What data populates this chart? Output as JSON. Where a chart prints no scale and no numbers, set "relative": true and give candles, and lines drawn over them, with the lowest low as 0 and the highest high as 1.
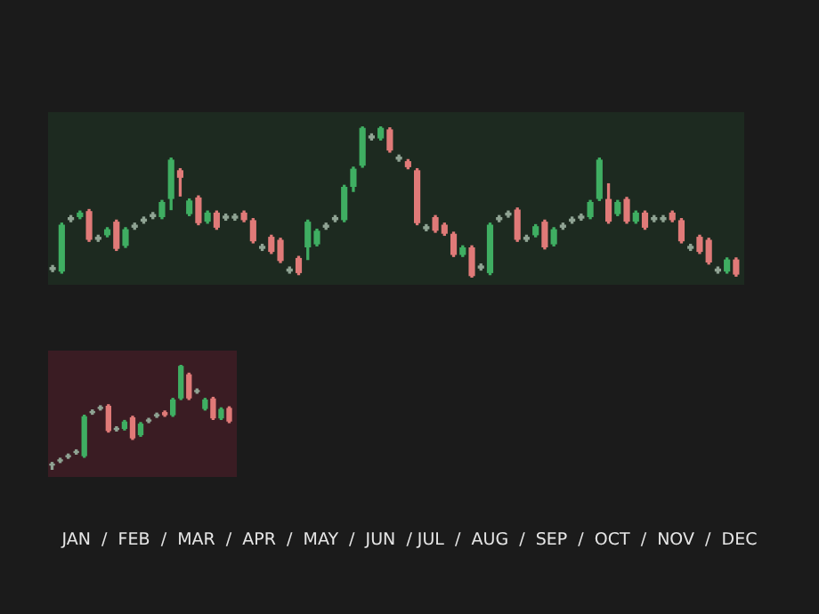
{
  "chart_data": [
    {
      "type": "candlestick",
      "relative": true,
      "tick_labels": false,
      "categories": [
        null,
        null,
        null,
        null,
        null,
        null,
        null,
        null,
        null,
        null,
        null,
        null,
        null,
        null,
        null,
        null,
        null,
        null,
        null,
        null,
        null,
        null,
        null,
        null,
        null,
        null,
        null,
        null,
        null,
        null,
        null,
        null,
        null,
        null,
        null,
        null,
        null,
        null,
        null,
        null,
        null,
        null,
        null,
        null,
        null,
        null,
        null,
        null,
        null,
        null,
        null,
        null,
        null,
        null,
        null,
        null,
        null,
        null,
        null,
        null,
        null,
        null,
        null,
        null,
        null,
        null,
        null,
        null,
        null,
        null,
        null,
        null,
        null,
        null,
        null,
        null
      ],
      "ohlc": [
        [
          0.05,
          0.08,
          0.04,
          0.07
        ],
        [
          0.04,
          0.36,
          0.03,
          0.35
        ],
        [
          0.38,
          0.41,
          0.37,
          0.4
        ],
        [
          0.4,
          0.44,
          0.39,
          0.43
        ],
        [
          0.44,
          0.45,
          0.24,
          0.25
        ],
        [
          0.25,
          0.28,
          0.24,
          0.27
        ],
        [
          0.28,
          0.33,
          0.27,
          0.32
        ],
        [
          0.37,
          0.38,
          0.18,
          0.19
        ],
        [
          0.21,
          0.33,
          0.2,
          0.32
        ],
        [
          0.33,
          0.36,
          0.32,
          0.35
        ],
        [
          0.37,
          0.4,
          0.36,
          0.39
        ],
        [
          0.4,
          0.43,
          0.39,
          0.42
        ],
        [
          0.4,
          0.51,
          0.39,
          0.5
        ],
        [
          0.52,
          0.79,
          0.45,
          0.78
        ],
        [
          0.71,
          0.72,
          0.54,
          0.66
        ],
        [
          0.42,
          0.52,
          0.41,
          0.51
        ],
        [
          0.53,
          0.54,
          0.35,
          0.36
        ],
        [
          0.37,
          0.44,
          0.36,
          0.43
        ],
        [
          0.43,
          0.44,
          0.32,
          0.33
        ],
        [
          0.39,
          0.42,
          0.38,
          0.41
        ],
        [
          0.39,
          0.42,
          0.38,
          0.41
        ],
        [
          0.43,
          0.44,
          0.37,
          0.38
        ],
        [
          0.38,
          0.39,
          0.23,
          0.24
        ],
        [
          0.19,
          0.22,
          0.18,
          0.21
        ],
        [
          0.27,
          0.28,
          0.16,
          0.17
        ],
        [
          0.25,
          0.26,
          0.1,
          0.11
        ],
        [
          0.04,
          0.07,
          0.03,
          0.06
        ],
        [
          0.13,
          0.14,
          0.02,
          0.03
        ],
        [
          0.2,
          0.38,
          0.12,
          0.37
        ],
        [
          0.22,
          0.32,
          0.21,
          0.31
        ],
        [
          0.33,
          0.36,
          0.32,
          0.35
        ],
        [
          0.38,
          0.41,
          0.37,
          0.4
        ],
        [
          0.38,
          0.61,
          0.37,
          0.6
        ],
        [
          0.6,
          0.73,
          0.57,
          0.72
        ],
        [
          0.74,
          1.0,
          0.73,
          0.99
        ],
        [
          0.92,
          0.95,
          0.91,
          0.94
        ],
        [
          0.92,
          1.0,
          0.91,
          0.99
        ],
        [
          0.98,
          0.99,
          0.83,
          0.84
        ],
        [
          0.78,
          0.81,
          0.77,
          0.8
        ],
        [
          0.77,
          0.78,
          0.72,
          0.73
        ],
        [
          0.71,
          0.72,
          0.35,
          0.36
        ],
        [
          0.32,
          0.35,
          0.31,
          0.34
        ],
        [
          0.4,
          0.41,
          0.3,
          0.31
        ],
        [
          0.35,
          0.36,
          0.28,
          0.29
        ],
        [
          0.29,
          0.3,
          0.14,
          0.15
        ],
        [
          0.15,
          0.21,
          0.14,
          0.2
        ],
        [
          0.2,
          0.21,
          0.0,
          0.01
        ],
        [
          0.06,
          0.09,
          0.05,
          0.08
        ],
        [
          0.03,
          0.36,
          0.02,
          0.35
        ],
        [
          0.38,
          0.41,
          0.37,
          0.4
        ],
        [
          0.41,
          0.44,
          0.4,
          0.43
        ],
        [
          0.45,
          0.46,
          0.24,
          0.25
        ],
        [
          0.25,
          0.28,
          0.24,
          0.27
        ],
        [
          0.28,
          0.35,
          0.27,
          0.34
        ],
        [
          0.37,
          0.38,
          0.19,
          0.2
        ],
        [
          0.22,
          0.33,
          0.21,
          0.32
        ],
        [
          0.33,
          0.36,
          0.32,
          0.35
        ],
        [
          0.37,
          0.4,
          0.36,
          0.39
        ],
        [
          0.39,
          0.42,
          0.38,
          0.41
        ],
        [
          0.4,
          0.51,
          0.39,
          0.5
        ],
        [
          0.52,
          0.79,
          0.51,
          0.78
        ],
        [
          0.52,
          0.62,
          0.36,
          0.37
        ],
        [
          0.42,
          0.51,
          0.41,
          0.5
        ],
        [
          0.52,
          0.53,
          0.36,
          0.37
        ],
        [
          0.37,
          0.44,
          0.36,
          0.43
        ],
        [
          0.43,
          0.44,
          0.32,
          0.33
        ],
        [
          0.38,
          0.41,
          0.37,
          0.4
        ],
        [
          0.38,
          0.41,
          0.37,
          0.4
        ],
        [
          0.43,
          0.44,
          0.37,
          0.38
        ],
        [
          0.38,
          0.39,
          0.23,
          0.24
        ],
        [
          0.19,
          0.22,
          0.18,
          0.21
        ],
        [
          0.27,
          0.28,
          0.16,
          0.17
        ],
        [
          0.25,
          0.26,
          0.09,
          0.1
        ],
        [
          0.04,
          0.07,
          0.03,
          0.06
        ],
        [
          0.04,
          0.13,
          0.03,
          0.12
        ],
        [
          0.12,
          0.13,
          0.01,
          0.02
        ]
      ],
      "colors": [
        "#8fa393",
        "#3fae62",
        "#8fa393",
        "#3fae62",
        "#e07a78",
        "#8fa393",
        "#3fae62",
        "#e07a78",
        "#3fae62",
        "#8fa393",
        "#8fa393",
        "#8fa393",
        "#3fae62",
        "#3fae62",
        "#e07a78",
        "#3fae62",
        "#e07a78",
        "#3fae62",
        "#e07a78",
        "#8fa393",
        "#8fa393",
        "#e07a78",
        "#e07a78",
        "#8fa393",
        "#e07a78",
        "#e07a78",
        "#8fa393",
        "#e07a78",
        "#3fae62",
        "#3fae62",
        "#8fa393",
        "#8fa393",
        "#3fae62",
        "#3fae62",
        "#3fae62",
        "#8fa393",
        "#3fae62",
        "#e07a78",
        "#8fa393",
        "#e07a78",
        "#e07a78",
        "#8fa393",
        "#e07a78",
        "#e07a78",
        "#e07a78",
        "#3fae62",
        "#e07a78",
        "#8fa393",
        "#3fae62",
        "#8fa393",
        "#8fa393",
        "#e07a78",
        "#8fa393",
        "#3fae62",
        "#e07a78",
        "#3fae62",
        "#8fa393",
        "#8fa393",
        "#8fa393",
        "#3fae62",
        "#3fae62",
        "#e07a78",
        "#3fae62",
        "#e07a78",
        "#3fae62",
        "#e07a78",
        "#8fa393",
        "#8fa393",
        "#e07a78",
        "#e07a78",
        "#8fa393",
        "#e07a78",
        "#e07a78",
        "#8fa393",
        "#3fae62",
        "#e07a78"
      ],
      "annotations": [
        "JAN  /  FEB  /  MAR  /  APR  /  MAY  /  JUN  / JUL  /  AUG  /  SEP  /  OCT  /  NOV  /  DEC"
      ]
    },
    {
      "type": "candlestick",
      "relative": true,
      "tick_labels": false,
      "categories": [
        null,
        null,
        null,
        null,
        null,
        null,
        null,
        null,
        null,
        null,
        null,
        null,
        null,
        null,
        null,
        null,
        null,
        null,
        null,
        null,
        null,
        null,
        null
      ],
      "ohlc": [
        [
          0.04,
          0.07,
          0.0,
          0.06
        ],
        [
          0.08,
          0.11,
          0.07,
          0.1
        ],
        [
          0.12,
          0.15,
          0.11,
          0.14
        ],
        [
          0.16,
          0.19,
          0.15,
          0.18
        ],
        [
          0.13,
          0.52,
          0.12,
          0.51
        ],
        [
          0.54,
          0.57,
          0.53,
          0.56
        ],
        [
          0.58,
          0.61,
          0.57,
          0.6
        ],
        [
          0.61,
          0.62,
          0.36,
          0.37
        ],
        [
          0.38,
          0.41,
          0.37,
          0.4
        ],
        [
          0.39,
          0.47,
          0.38,
          0.46
        ],
        [
          0.5,
          0.51,
          0.29,
          0.3
        ],
        [
          0.33,
          0.45,
          0.32,
          0.44
        ],
        [
          0.46,
          0.49,
          0.45,
          0.48
        ],
        [
          0.51,
          0.54,
          0.5,
          0.53
        ],
        [
          0.55,
          0.56,
          0.51,
          0.52
        ],
        [
          0.52,
          0.68,
          0.51,
          0.67
        ],
        [
          0.68,
          1.0,
          0.67,
          0.99
        ],
        [
          0.91,
          0.92,
          0.67,
          0.68
        ],
        [
          0.74,
          0.77,
          0.73,
          0.76
        ],
        [
          0.58,
          0.68,
          0.57,
          0.67
        ],
        [
          0.68,
          0.69,
          0.48,
          0.49
        ],
        [
          0.49,
          0.59,
          0.48,
          0.58
        ],
        [
          0.59,
          0.6,
          0.45,
          0.46
        ]
      ],
      "colors": [
        "#8fa393",
        "#8fa393",
        "#8fa393",
        "#8fa393",
        "#3fae62",
        "#8fa393",
        "#8fa393",
        "#e07a78",
        "#8fa393",
        "#3fae62",
        "#e07a78",
        "#3fae62",
        "#8fa393",
        "#8fa393",
        "#e07a78",
        "#3fae62",
        "#3fae62",
        "#e07a78",
        "#8fa393",
        "#3fae62",
        "#e07a78",
        "#3fae62",
        "#e07a78"
      ]
    }
  ]
}
